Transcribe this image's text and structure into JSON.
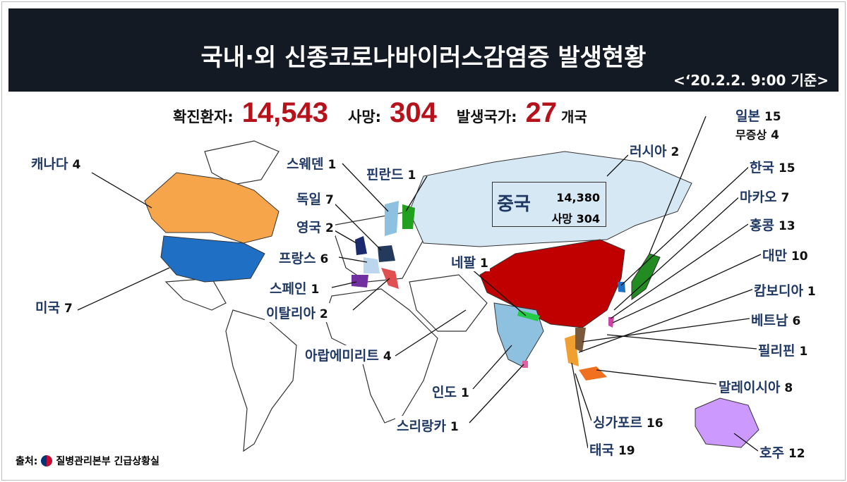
{
  "header": {
    "title": "국내·외 신종코로나바이러스감염증 발생현황",
    "date": "<‘20.2.2. 9:00 기준>"
  },
  "stats": {
    "confirmed_label": "확진환자:",
    "confirmed": "14,543",
    "deaths_label": "사망:",
    "deaths": "304",
    "countries_label": "발생국가:",
    "countries": "27",
    "countries_unit": "개국"
  },
  "china": {
    "name": "중국",
    "cases": "14,380",
    "deaths": "사망  304"
  },
  "countries": [
    {
      "name": "캐나다",
      "n": "4"
    },
    {
      "name": "미국",
      "n": "7"
    },
    {
      "name": "스웨덴",
      "n": "1"
    },
    {
      "name": "핀란드",
      "n": "1"
    },
    {
      "name": "독일",
      "n": "7"
    },
    {
      "name": "영국",
      "n": "2"
    },
    {
      "name": "프랑스",
      "n": "6"
    },
    {
      "name": "스페인",
      "n": "1"
    },
    {
      "name": "이탈리아",
      "n": "2"
    },
    {
      "name": "네팔",
      "n": "1"
    },
    {
      "name": "아랍에미리트",
      "n": "4"
    },
    {
      "name": "인도",
      "n": "1"
    },
    {
      "name": "스리랑카",
      "n": "1"
    },
    {
      "name": "러시아",
      "n": "2"
    },
    {
      "name": "일본",
      "n": "15"
    },
    {
      "name": "무증상",
      "n": "4"
    },
    {
      "name": "한국",
      "n": "15"
    },
    {
      "name": "마카오",
      "n": "7"
    },
    {
      "name": "홍콩",
      "n": "13"
    },
    {
      "name": "대만",
      "n": "10"
    },
    {
      "name": "캄보디아",
      "n": "1"
    },
    {
      "name": "베트남",
      "n": "6"
    },
    {
      "name": "필리핀",
      "n": "1"
    },
    {
      "name": "말레이시아",
      "n": "8"
    },
    {
      "name": "싱가포르",
      "n": "16"
    },
    {
      "name": "태국",
      "n": "19"
    },
    {
      "name": "호주",
      "n": "12"
    }
  ],
  "colors": {
    "china": "#c00000",
    "usa": "#1f6fc5",
    "canada": "#f7a54a",
    "russia": "#d7e8f5",
    "highlight_number": "#b5121b",
    "label": "#1f3864"
  },
  "source": {
    "label": "출처:",
    "org": "질병관리본부 긴급상황실"
  }
}
